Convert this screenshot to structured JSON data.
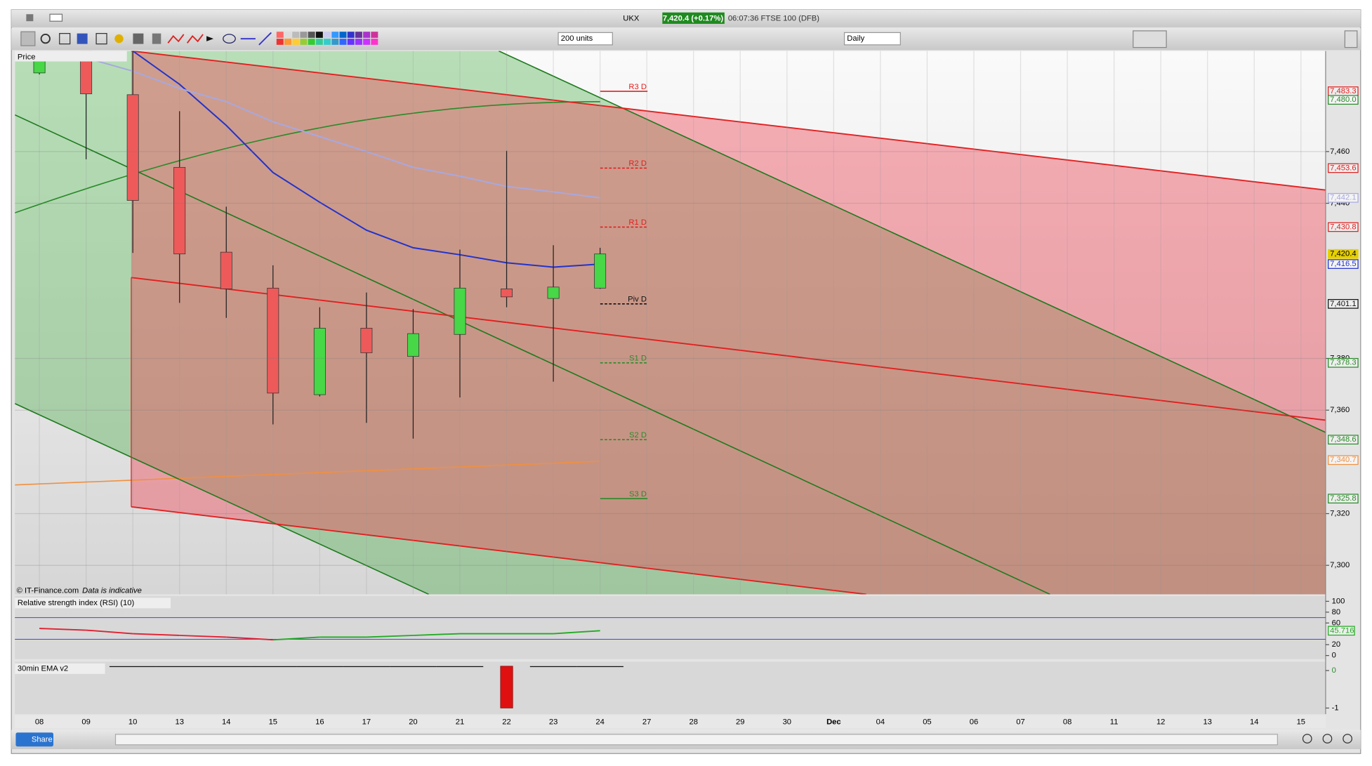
{
  "window": {
    "symbol": "UKX",
    "quote": "7,420.4 (+0.17%)",
    "status": "06:07:36 FTSE 100 (DFB)"
  },
  "toolbar": {
    "size": "200 units",
    "interval": "Daily"
  },
  "footer": {
    "share": "Share",
    "copyright": "© IT-Finance.com",
    "disclaimer": "Data is indicative"
  },
  "chart_data": [
    {
      "type": "candlestick",
      "title": "Price",
      "categories": [
        "08",
        "09",
        "10",
        "13",
        "14",
        "15",
        "16",
        "17",
        "20",
        "21",
        "22",
        "23",
        "24",
        "27",
        "28",
        "29",
        "30",
        "Dec",
        "04",
        "05",
        "06",
        "07",
        "08",
        "11",
        "12",
        "13",
        "14",
        "15"
      ],
      "open": [
        7490.4,
        7500,
        7482.0,
        7453.9,
        7421.1,
        7407.2,
        7366.0,
        7391.7,
        7380.8,
        7389.3,
        7406.9,
        7403.2,
        7407.2,
        null,
        null,
        null,
        null,
        null,
        null,
        null,
        null,
        null,
        null,
        null,
        null,
        null,
        null,
        null
      ],
      "high": [
        7497.0,
        7505,
        7500,
        7475.6,
        7438.7,
        7416.0,
        7399.8,
        7405.5,
        7399.1,
        7422.1,
        7460.3,
        7423.8,
        7422.8,
        null,
        null,
        null,
        null,
        null,
        null,
        null,
        null,
        null,
        null,
        null,
        null,
        null,
        null,
        null
      ],
      "low": [
        7489.8,
        7457.0,
        7420.8,
        7401.5,
        7395.7,
        7354.5,
        7365.3,
        7355.1,
        7349.0,
        7364.9,
        7399.8,
        7371.0,
        7406.9,
        null,
        null,
        null,
        null,
        null,
        null,
        null,
        null,
        null,
        null,
        null,
        null,
        null,
        null,
        null
      ],
      "close": [
        7495.2,
        7482.3,
        7441.1,
        7420.4,
        7406.9,
        7366.6,
        7391.7,
        7382.2,
        7389.6,
        7407.2,
        7403.8,
        7407.6,
        7420.4,
        null,
        null,
        null,
        null,
        null,
        null,
        null,
        null,
        null,
        null,
        null,
        null,
        null,
        null,
        null
      ],
      "up_color": "#47d747",
      "down_color": "#ee5a5a",
      "series": [
        {
          "color": "#2233cc",
          "values": [
            null,
            null,
            7498.9,
            7486.0,
            7470.1,
            7451.9,
            7440.4,
            7429.6,
            7422.8,
            7420.1,
            7417.0,
            7415.3,
            7416.5,
            null,
            null,
            null,
            null,
            null,
            null,
            null,
            null,
            null,
            null,
            null,
            null,
            null,
            null,
            null
          ]
        },
        {
          "color": "#a8a8e0",
          "values": [
            null,
            7496.2,
            7491.1,
            7484.4,
            7479.3,
            7471.5,
            7465.8,
            7460.0,
            7453.9,
            7450.5,
            7446.5,
            7444.4,
            7442.1,
            null,
            null,
            null,
            null,
            null,
            null,
            null,
            null,
            null,
            null,
            null,
            null,
            null,
            null,
            null
          ]
        }
      ],
      "levels": [
        {
          "name": "R3 D",
          "value": 7483.3,
          "label": "7,483.3",
          "color": "#e02020",
          "dashed": false
        },
        {
          "name": "R2 D",
          "value": 7453.6,
          "label": "7,453.6",
          "color": "#e02020",
          "dashed": true
        },
        {
          "name": "R1 D",
          "value": 7430.8,
          "label": "7,430.8",
          "color": "#e02020",
          "dashed": true
        },
        {
          "name": "Piv D",
          "value": 7401.1,
          "label": "7,401.1",
          "color": "#111111",
          "dashed": true
        },
        {
          "name": "S1 D",
          "value": 7378.3,
          "label": "7,378.3",
          "color": "#2a8a2a",
          "dashed": true
        },
        {
          "name": "S2 D",
          "value": 7348.6,
          "label": "7,348.6",
          "color": "#2a8a2a",
          "dashed": true
        },
        {
          "name": "S3 D",
          "value": 7325.8,
          "label": "7,325.8",
          "color": "#2a8a2a",
          "dashed": false
        }
      ],
      "markers": [
        {
          "value": 7480.0,
          "label": "7,480.0",
          "color": "#2a8a2a"
        },
        {
          "value": 7442.1,
          "label": "7,442.1",
          "color": "#a8a8e0"
        },
        {
          "value": 7420.4,
          "label": "7,420.4",
          "color": "#e6d000"
        },
        {
          "value": 7416.5,
          "label": "7,416.5",
          "color": "#2233cc"
        },
        {
          "value": 7340.7,
          "label": "7,340.7",
          "color": "#f09040"
        }
      ],
      "ylim": [
        7288.8,
        7498.9
      ],
      "yticks": [
        {
          "value": 7300,
          "label": "7,300"
        },
        {
          "value": 7320,
          "label": "7,320"
        },
        {
          "value": 7360,
          "label": "7,360"
        },
        {
          "value": 7380,
          "label": "7,380"
        },
        {
          "value": 7440,
          "label": "7,440"
        },
        {
          "value": 7460,
          "label": "7,460"
        }
      ],
      "grid": true
    },
    {
      "type": "line",
      "title": "Relative strength index (RSI) (10)",
      "values": [
        50.0,
        46.8,
        40.3,
        37.1,
        33.9,
        29.0,
        33.9,
        33.9,
        37.1,
        40.3,
        40.3,
        40.3,
        45.716,
        null,
        null,
        null,
        null,
        null,
        null,
        null,
        null,
        null,
        null,
        null,
        null,
        null,
        null,
        null
      ],
      "up_color": "#22aa22",
      "down_color": "#e02030",
      "bands": [
        30,
        70
      ],
      "band_color": "#4444dd",
      "ylim": [
        -6.5,
        109.7
      ],
      "yticks": [
        0,
        20,
        60,
        80,
        100
      ]
    },
    {
      "type": "bar",
      "title": "30min EMA v2",
      "values": [
        null,
        null,
        0,
        0,
        0,
        0,
        0,
        0,
        0,
        0,
        -1,
        0,
        0,
        null,
        null,
        null,
        null,
        null,
        null,
        null,
        null,
        null,
        null,
        null,
        null,
        null,
        null,
        null
      ],
      "color": "#e01010",
      "ylim": [
        -1.14,
        0.19
      ],
      "yticks": [
        -1,
        0
      ]
    }
  ]
}
